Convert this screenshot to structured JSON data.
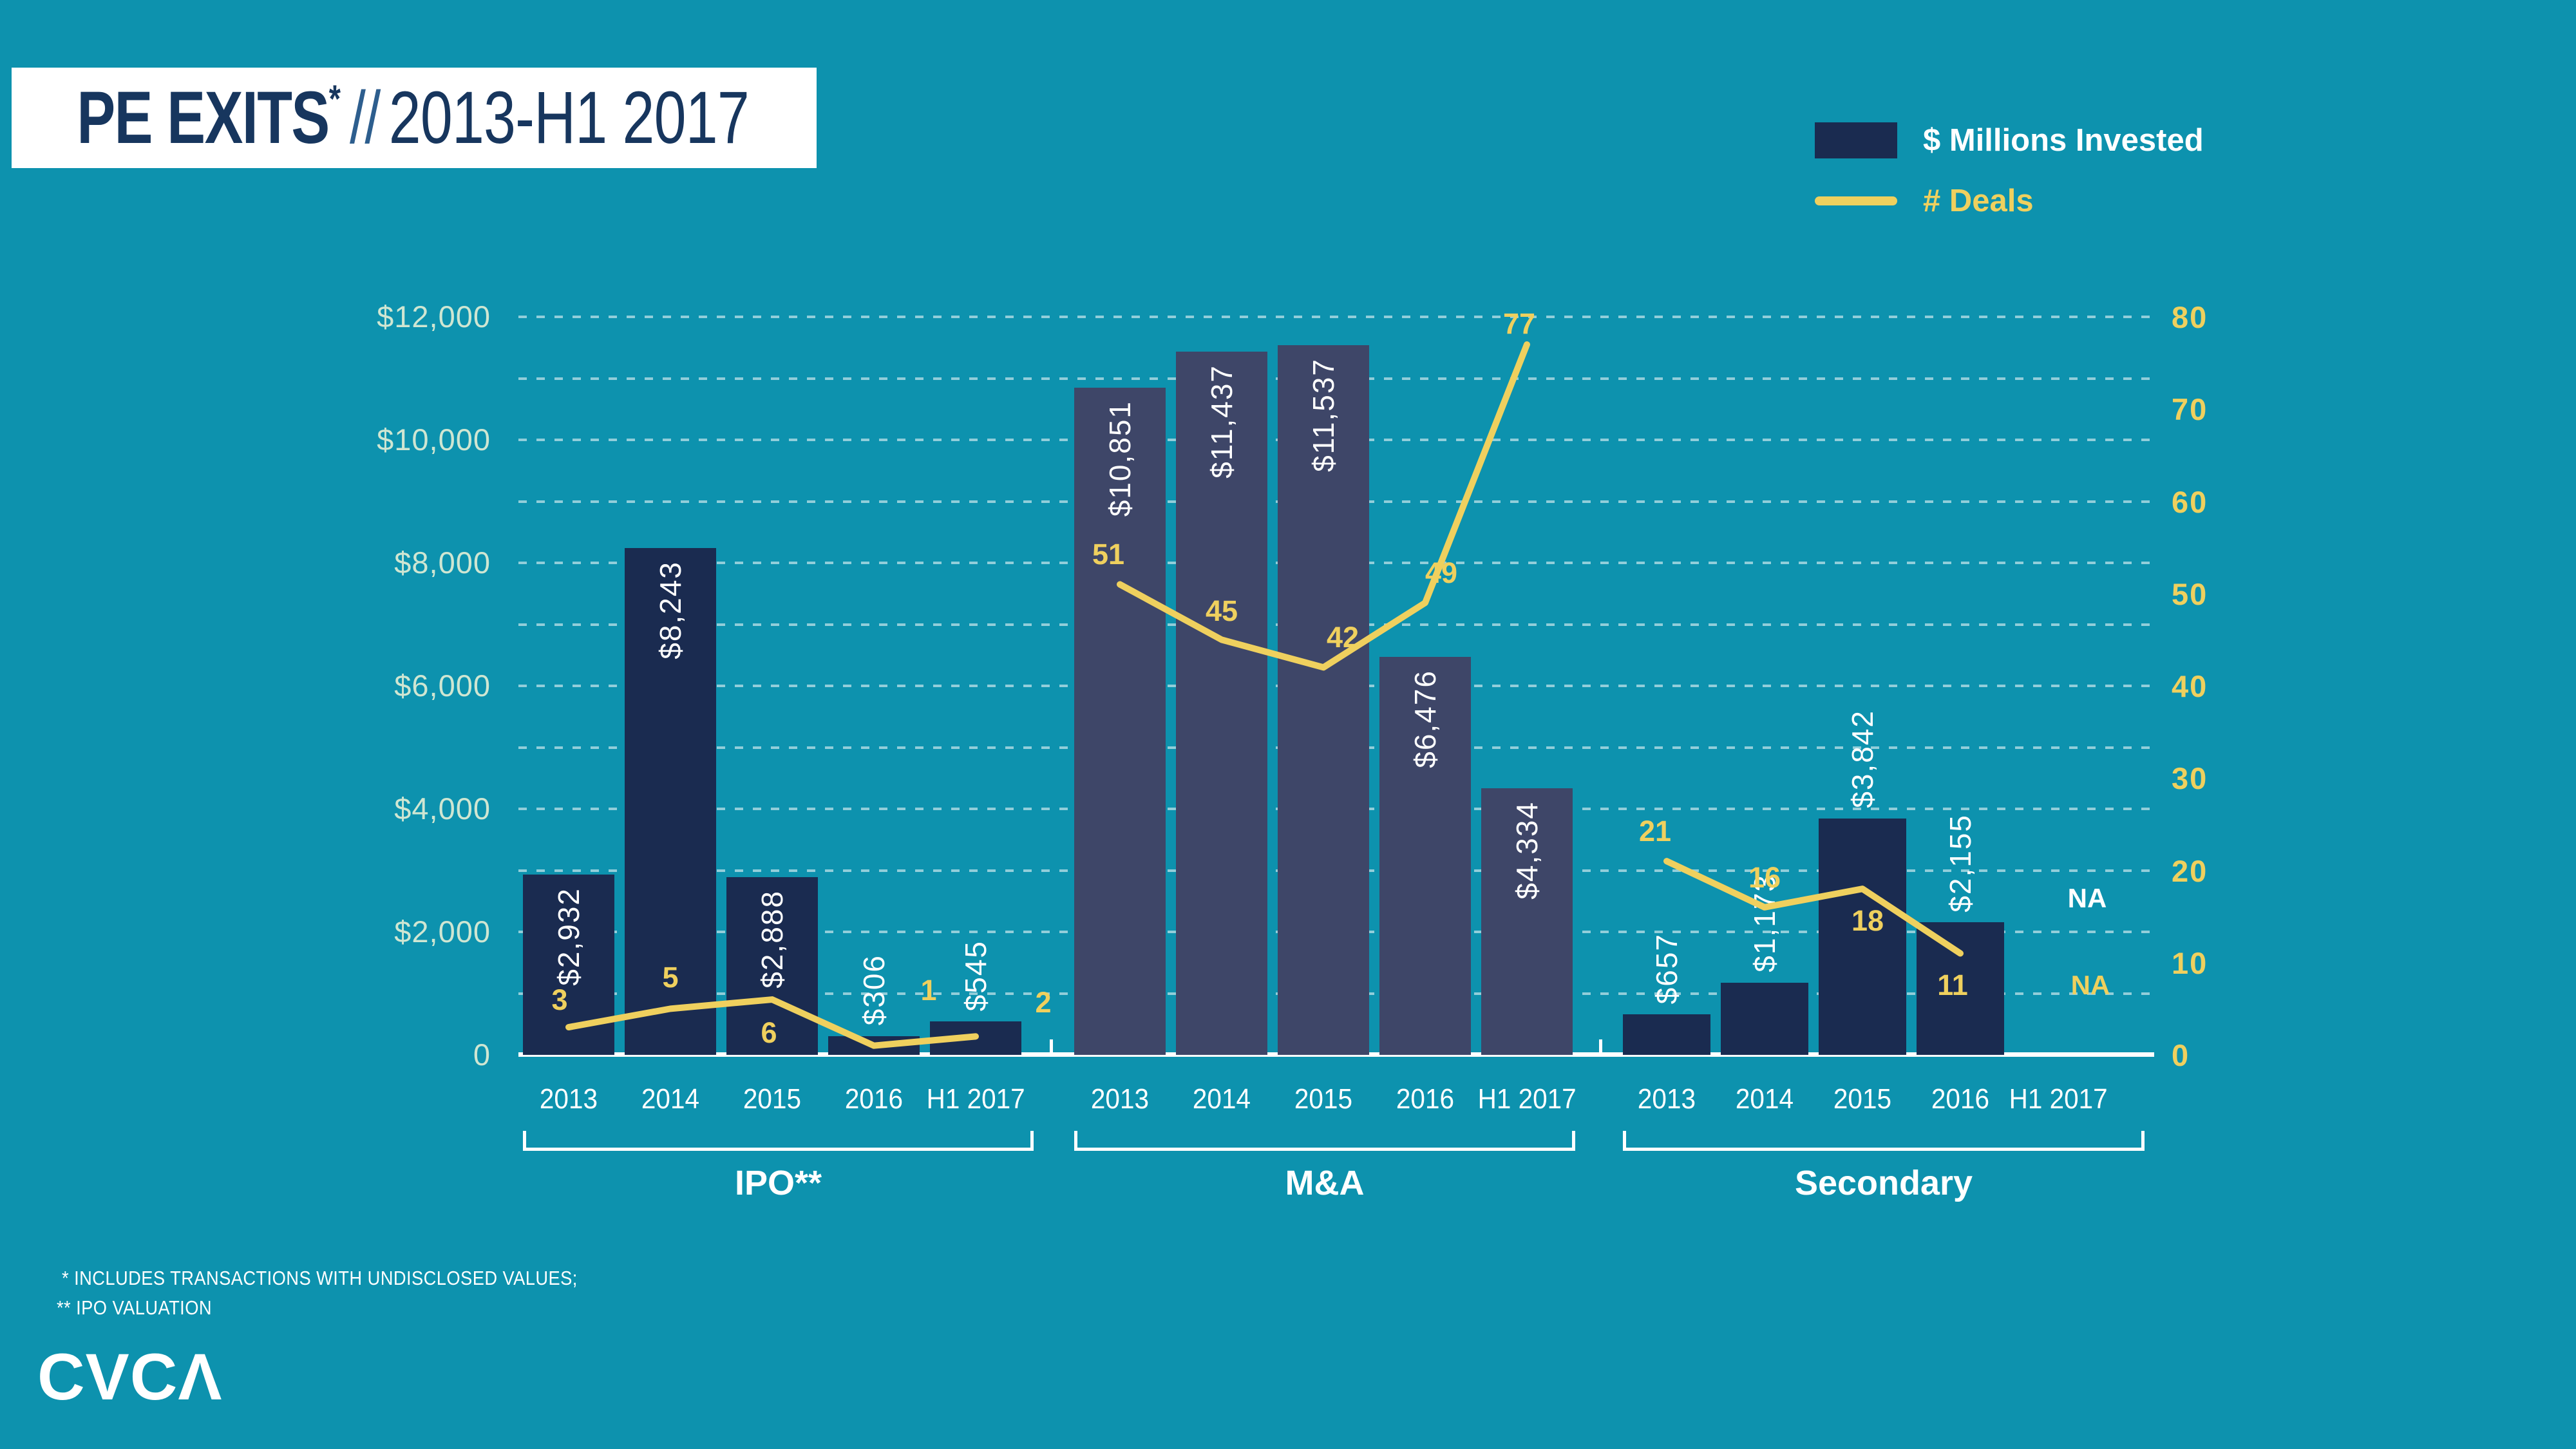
{
  "title": {
    "main": "PE EXITS",
    "asterisk": "*",
    "separator": "//",
    "range": "2013-H1 2017"
  },
  "legend": {
    "bar_label": "$ Millions Invested",
    "line_label": "# Deals"
  },
  "chart_data": {
    "type": "bar+line",
    "series_names": [
      "$ Millions Invested",
      "# Deals"
    ],
    "left_axis": {
      "title": "$ Millions Invested",
      "max": 12000,
      "gridline_step": 1000,
      "ticks": [
        {
          "label": "$12,000",
          "value": 12000
        },
        {
          "label": "$10,000",
          "value": 10000
        },
        {
          "label": "$8,000",
          "value": 8000
        },
        {
          "label": "$6,000",
          "value": 6000
        },
        {
          "label": "$4,000",
          "value": 4000
        },
        {
          "label": "$2,000",
          "value": 2000
        },
        {
          "label": "0",
          "value": 0
        }
      ]
    },
    "right_axis": {
      "title": "# Deals",
      "max": 80,
      "ticks": [
        {
          "label": "80",
          "value": 80
        },
        {
          "label": "70",
          "value": 70
        },
        {
          "label": "60",
          "value": 60
        },
        {
          "label": "50",
          "value": 50
        },
        {
          "label": "40",
          "value": 40
        },
        {
          "label": "30",
          "value": 30
        },
        {
          "label": "20",
          "value": 20
        },
        {
          "label": "10",
          "value": 10
        },
        {
          "label": "0",
          "value": 0
        }
      ]
    },
    "groups": [
      {
        "name": "IPO**",
        "categories": [
          "2013",
          "2014",
          "2015",
          "2016",
          "H1 2017"
        ],
        "invested_musd": [
          2932,
          8243,
          2888,
          306,
          545
        ],
        "invested_labels": [
          "$2,932",
          "$8,243",
          "$2,888",
          "$306",
          "$545"
        ],
        "deals": [
          3,
          5,
          6,
          1,
          2
        ],
        "deal_labels": [
          "3",
          "5",
          "6",
          "1",
          "2"
        ]
      },
      {
        "name": "M&A",
        "categories": [
          "2013",
          "2014",
          "2015",
          "2016",
          "H1 2017"
        ],
        "invested_musd": [
          10851,
          11437,
          11537,
          6476,
          4334
        ],
        "invested_labels": [
          "$10,851",
          "$11,437",
          "$11,537",
          "$6,476",
          "$4,334"
        ],
        "deals": [
          51,
          45,
          42,
          49,
          77
        ],
        "deal_labels": [
          "51",
          "45",
          "42",
          "49",
          "77"
        ]
      },
      {
        "name": "Secondary",
        "categories": [
          "2013",
          "2014",
          "2015",
          "2016",
          "H1 2017"
        ],
        "invested_musd": [
          657,
          1173,
          3842,
          2155,
          null
        ],
        "invested_labels": [
          "$657",
          "$1,173",
          "$3,842",
          "$2,155",
          ""
        ],
        "deals": [
          21,
          16,
          18,
          11,
          null
        ],
        "deal_labels": [
          "21",
          "16",
          "18",
          "11",
          ""
        ],
        "na_invested_label": "NA",
        "na_deals_label": "NA"
      }
    ]
  },
  "footnotes": [
    " * INCLUDES TRANSACTIONS WITH UNDISCLOSED VALUES;",
    "** IPO VALUATION"
  ],
  "logo": {
    "text": "CVCA"
  },
  "colors": {
    "background": "#0d92ae",
    "bar_dark_navy": "#1a2b50",
    "bar_slate": "#3e4668",
    "line_yellow": "#efd05e",
    "axis_mint": "#cfe6d2",
    "title_navy": "#17365e",
    "white": "#ffffff"
  }
}
